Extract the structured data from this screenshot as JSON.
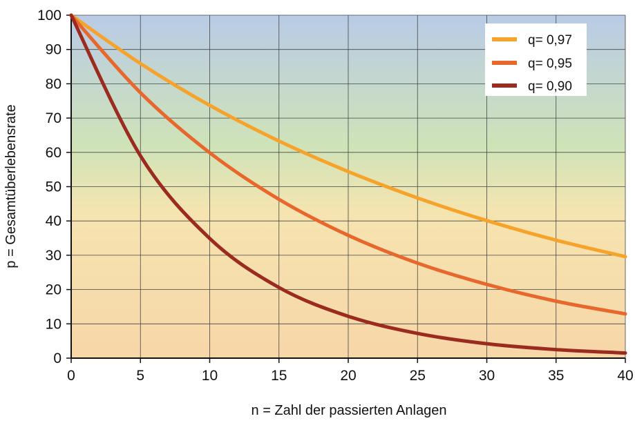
{
  "chart_data": {
    "type": "line",
    "xlabel": "n = Zahl der passierten Anlagen",
    "ylabel": "p = Gesamtüberlebensrate",
    "xlim": [
      0,
      40
    ],
    "ylim": [
      0,
      100
    ],
    "xticks": [
      0,
      5,
      10,
      15,
      20,
      25,
      30,
      35,
      40
    ],
    "yticks": [
      0,
      10,
      20,
      30,
      40,
      50,
      60,
      70,
      80,
      90,
      100
    ],
    "xtick_labels": [
      "0",
      "5",
      "10",
      "15",
      "20",
      "25",
      "30",
      "35",
      "40"
    ],
    "ytick_labels": [
      "0",
      "10",
      "20",
      "30",
      "40",
      "50",
      "60",
      "70",
      "80",
      "90",
      "100"
    ],
    "grid": true,
    "legend_position": "top-right",
    "background_gradient": [
      "#b9cbe6",
      "#cfe3b8",
      "#f6e4b0",
      "#f7d6a8"
    ],
    "x": [
      0,
      5,
      10,
      15,
      20,
      25,
      30,
      35,
      40
    ],
    "series": [
      {
        "name": "q= 0,97",
        "color": "#f5a32a",
        "values": [
          100,
          85.9,
          73.7,
          63.3,
          54.4,
          46.7,
          40.1,
          34.4,
          29.6
        ]
      },
      {
        "name": "q= 0,95",
        "color": "#e8672c",
        "values": [
          100,
          77.4,
          59.9,
          46.3,
          35.8,
          27.7,
          21.5,
          16.6,
          12.9
        ]
      },
      {
        "name": "q= 0,90",
        "color": "#9b2a1f",
        "values": [
          100,
          59.0,
          34.9,
          20.6,
          12.2,
          7.2,
          4.2,
          2.5,
          1.5
        ]
      }
    ]
  }
}
